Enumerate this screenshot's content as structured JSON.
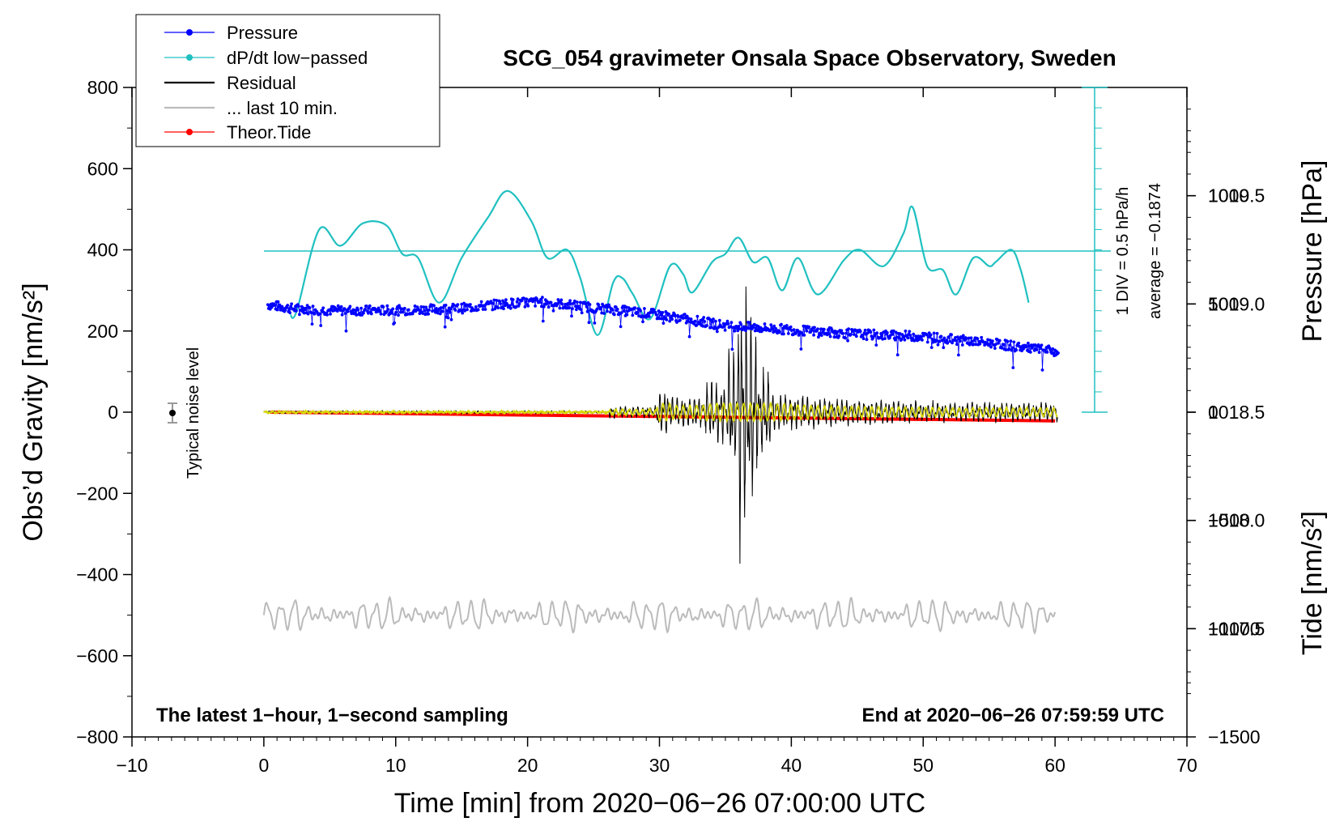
{
  "chart_data": {
    "type": "line",
    "title": "SCG_054 gravimeter Onsala Space Observatory, Sweden",
    "xlabel": "Time [min] from 2020−06−26 07:00:00 UTC",
    "ylabel": "Obs’d Gravity [nm/s²]",
    "y2label_pressure": "Pressure [hPa]",
    "y2label_tide": "Tide [nm/s²]",
    "xlim": [
      -10,
      70
    ],
    "ylim": [
      -800,
      800
    ],
    "x_ticks": [
      "−10",
      "0",
      "10",
      "20",
      "30",
      "40",
      "50",
      "60",
      "70"
    ],
    "y_ticks": [
      "800",
      "600",
      "400",
      "200",
      "0",
      "−200",
      "−400",
      "−600",
      "−800"
    ],
    "pressure_axis": {
      "range_hPa": [
        1017.0,
        1020.0
      ],
      "ticks": [
        "1019.5",
        "1019.0",
        "1018.5",
        "1018.0",
        "1017.5"
      ],
      "tick_values": [
        1019.5,
        1019.0,
        1018.5,
        1018.0,
        1017.5
      ]
    },
    "tide_axis": {
      "range": [
        -1500,
        1500
      ],
      "ticks": [
        "1000",
        "500",
        "0",
        "−500",
        "−1000",
        "−1500"
      ],
      "tick_values": [
        1000,
        500,
        0,
        -500,
        -1000,
        -1500
      ]
    },
    "legend": [
      {
        "label": "Pressure",
        "color": "#0000ff",
        "marker": true
      },
      {
        "label": "dP/dt low−passed",
        "color": "#20c0c0",
        "marker": true
      },
      {
        "label": "Residual",
        "color": "#000000",
        "marker": false
      },
      {
        "label": "... last 10 min.",
        "color": "#bbbbbb",
        "marker": false
      },
      {
        "label": "Theor.Tide",
        "color": "#ff0000",
        "marker": true
      }
    ],
    "notes": {
      "left_bottom": "The latest 1−hour, 1−second sampling",
      "right_bottom": "End at 2020−06−26 07:59:59 UTC",
      "noise": "Typical noise level",
      "div": "1 DIV = 0.5 hPa/h",
      "average": "average = −0.1874"
    },
    "series": [
      {
        "name": "Pressure",
        "color": "#0000ff",
        "unit": "hPa",
        "x": [
          0,
          2,
          5,
          10,
          15,
          18,
          21,
          24,
          30,
          35,
          40,
          45,
          50,
          55,
          60
        ],
        "values": [
          1019.0,
          1018.98,
          1018.97,
          1018.97,
          1018.98,
          1019.0,
          1019.01,
          1018.99,
          1018.95,
          1018.9,
          1018.88,
          1018.86,
          1018.85,
          1018.82,
          1018.78
        ]
      },
      {
        "name": "dP/dt low-passed",
        "color": "#20c0c0",
        "unit": "nm/s² plot units",
        "x": [
          2,
          2.5,
          4.2,
          5.8,
          7.5,
          9.3,
          10.5,
          11.7,
          13.3,
          15,
          17,
          18.5,
          20.3,
          21.5,
          23,
          24,
          25.3,
          26.5,
          27.2,
          28,
          29.3,
          30.8,
          31.8,
          32.5,
          34,
          35,
          36,
          37.1,
          38.2,
          39.3,
          40.5,
          42,
          44,
          45.2,
          47,
          48.5,
          49.2,
          50.3,
          51.5,
          52.5,
          53.8,
          55,
          55.5,
          56.7,
          57.4,
          58
        ],
        "values": [
          240,
          250,
          450,
          410,
          465,
          460,
          390,
          380,
          270,
          380,
          480,
          545,
          470,
          380,
          400,
          330,
          190,
          320,
          330,
          290,
          230,
          360,
          340,
          295,
          370,
          390,
          430,
          370,
          380,
          300,
          380,
          290,
          375,
          400,
          360,
          440,
          505,
          360,
          350,
          290,
          380,
          360,
          370,
          400,
          350,
          270
        ]
      },
      {
        "name": "Residual",
        "color": "#000000",
        "unit": "nm/s²",
        "events": [
          {
            "x": 26.2,
            "amp": 35,
            "label": "first arrival"
          },
          {
            "x": 30.3,
            "amp": 95,
            "label": "secondary"
          },
          {
            "x": 36.3,
            "amp": 395,
            "label": "peak maximum"
          },
          {
            "x": 36.2,
            "amp": -365,
            "label": "peak minimum"
          }
        ]
      },
      {
        "name": "... last 10 min.",
        "color": "#bbbbbb",
        "unit": "nm/s²",
        "offset": -500,
        "x_range": [
          0,
          60
        ],
        "amp": 40
      },
      {
        "name": "Theor.Tide",
        "color": "#ff0000",
        "unit": "nm/s²",
        "x": [
          0.5,
          60
        ],
        "values": [
          0,
          -40
        ]
      }
    ]
  }
}
